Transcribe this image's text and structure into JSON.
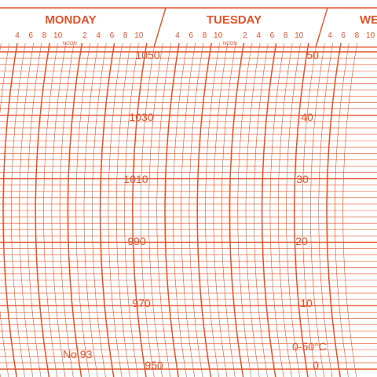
{
  "chart": {
    "ink_color": "#e4522a",
    "paper_color": "#ffffff",
    "days": [
      "MONDAY",
      "TUESDAY",
      "WE"
    ],
    "hour_ticks": [
      "4",
      "6",
      "8",
      "10",
      "",
      "2",
      "4",
      "6",
      "8",
      "10"
    ],
    "noon_label": "NOON",
    "pressure_scale": [
      "1050",
      "1030",
      "1010",
      "990",
      "970",
      "950"
    ],
    "temperature_scale": [
      "50",
      "40",
      "30",
      "20",
      "10",
      "0"
    ],
    "chart_number": "No.93",
    "temperature_range": "0-50°C"
  }
}
